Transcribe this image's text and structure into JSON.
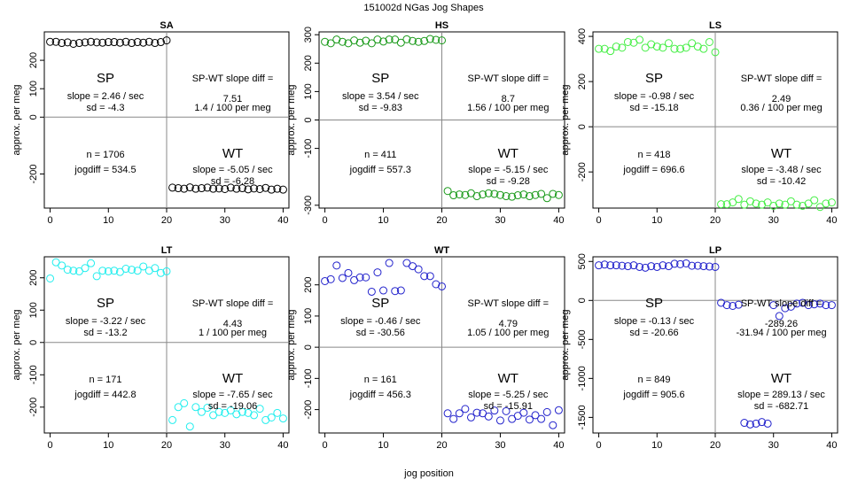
{
  "figure": {
    "title": "151002d   NGas Jog Shapes",
    "xlabel": "jog position",
    "ylabel": "approx. per meg"
  },
  "chart_data": [
    {
      "type": "scatter",
      "title": "SA",
      "color": "#000000",
      "xlim": [
        -1,
        41
      ],
      "ylim": [
        -320,
        300
      ],
      "xticks": [
        0,
        10,
        20,
        30,
        40
      ],
      "yticks": [
        -200,
        0,
        100,
        200
      ],
      "x": [
        0,
        1,
        2,
        3,
        4,
        5,
        6,
        7,
        8,
        9,
        10,
        11,
        12,
        13,
        14,
        15,
        16,
        17,
        18,
        19,
        20,
        21,
        22,
        23,
        24,
        25,
        26,
        27,
        28,
        29,
        30,
        31,
        32,
        33,
        34,
        35,
        36,
        37,
        38,
        39,
        40
      ],
      "y": [
        265,
        265,
        261,
        263,
        258,
        261,
        263,
        265,
        263,
        262,
        264,
        264,
        262,
        265,
        261,
        264,
        262,
        265,
        261,
        264,
        270,
        -248,
        -250,
        -252,
        -247,
        -252,
        -250,
        -248,
        -252,
        -251,
        -253,
        -248,
        -252,
        -250,
        -254,
        -251,
        -253,
        -249,
        -255,
        -252,
        -255
      ],
      "annotations": {
        "sp_label": "SP",
        "sp_slope": "slope = 2.46 / sec",
        "sp_sd": "sd = -4.3",
        "diff_title": "SP-WT slope diff =",
        "diff_value": "7.51",
        "diff_permeg": "1.4 / 100 per meg",
        "n": "n = 1706",
        "jogdiff": "jogdiff = 534.5",
        "wt_label": "WT",
        "wt_slope": "slope = -5.05 / sec",
        "wt_sd": "sd = -6.28"
      }
    },
    {
      "type": "scatter",
      "title": "HS",
      "color": "#1a9a1a",
      "xlim": [
        -1,
        41
      ],
      "ylim": [
        -310,
        310
      ],
      "xticks": [
        0,
        10,
        20,
        30,
        40
      ],
      "yticks": [
        -300,
        -100,
        0,
        100,
        200,
        300
      ],
      "x": [
        0,
        1,
        2,
        3,
        4,
        5,
        6,
        7,
        8,
        9,
        10,
        11,
        12,
        13,
        14,
        15,
        16,
        17,
        18,
        19,
        20,
        21,
        22,
        23,
        24,
        25,
        26,
        27,
        28,
        29,
        30,
        31,
        32,
        33,
        34,
        35,
        36,
        37,
        38,
        39,
        40
      ],
      "y": [
        275,
        270,
        283,
        275,
        270,
        280,
        272,
        279,
        270,
        283,
        276,
        283,
        283,
        272,
        284,
        278,
        275,
        278,
        285,
        282,
        280,
        -250,
        -265,
        -262,
        -264,
        -258,
        -268,
        -262,
        -258,
        -260,
        -264,
        -268,
        -270,
        -265,
        -262,
        -268,
        -264,
        -260,
        -275,
        -260,
        -264
      ],
      "annotations": {
        "sp_label": "SP",
        "sp_slope": "slope = 3.54 / sec",
        "sp_sd": "sd = -9.83",
        "diff_title": "SP-WT slope diff =",
        "diff_value": "8.7",
        "diff_permeg": "1.56 / 100 per meg",
        "n": "n = 411",
        "jogdiff": "jogdiff = 557.3",
        "wt_label": "WT",
        "wt_slope": "slope = -5.15 / sec",
        "wt_sd": "sd = -9.28"
      }
    },
    {
      "type": "scatter",
      "title": "LS",
      "color": "#44ee44",
      "xlim": [
        -1,
        41
      ],
      "ylim": [
        -360,
        420
      ],
      "xticks": [
        0,
        10,
        20,
        30,
        40
      ],
      "yticks": [
        -200,
        0,
        200,
        400
      ],
      "x": [
        0,
        1,
        2,
        3,
        4,
        5,
        6,
        7,
        8,
        9,
        10,
        11,
        12,
        13,
        14,
        15,
        16,
        17,
        18,
        19,
        20,
        21,
        22,
        23,
        24,
        25,
        26,
        27,
        28,
        29,
        30,
        31,
        32,
        33,
        34,
        35,
        36,
        37,
        38,
        39,
        40
      ],
      "y": [
        345,
        345,
        335,
        355,
        350,
        375,
        372,
        385,
        350,
        365,
        355,
        350,
        370,
        345,
        345,
        350,
        370,
        355,
        345,
        375,
        330,
        -343,
        -343,
        -335,
        -320,
        -345,
        -330,
        -340,
        -345,
        -335,
        -350,
        -340,
        -345,
        -330,
        -345,
        -350,
        -340,
        -325,
        -355,
        -340,
        -335
      ],
      "annotations": {
        "sp_label": "SP",
        "sp_slope": "slope = -0.98 / sec",
        "sp_sd": "sd = -15.18",
        "diff_title": "SP-WT slope diff =",
        "diff_value": "2.49",
        "diff_permeg": "0.36 / 100 per meg",
        "n": "n = 418",
        "jogdiff": "jogdiff = 696.6",
        "wt_label": "WT",
        "wt_slope": "slope = -3.48 / sec",
        "wt_sd": "sd = -10.42"
      }
    },
    {
      "type": "scatter",
      "title": "LT",
      "color": "#22eeee",
      "xlim": [
        -1,
        41
      ],
      "ylim": [
        -280,
        265
      ],
      "xticks": [
        0,
        10,
        20,
        30,
        40
      ],
      "yticks": [
        -200,
        -100,
        0,
        100,
        200
      ],
      "x": [
        0,
        1,
        2,
        3,
        4,
        5,
        6,
        7,
        8,
        9,
        10,
        11,
        12,
        13,
        14,
        15,
        16,
        17,
        18,
        19,
        20,
        21,
        22,
        23,
        24,
        25,
        26,
        27,
        28,
        29,
        30,
        31,
        32,
        33,
        34,
        35,
        36,
        37,
        38,
        39,
        40
      ],
      "y": [
        198,
        248,
        238,
        225,
        222,
        220,
        230,
        245,
        205,
        222,
        220,
        222,
        218,
        228,
        225,
        222,
        235,
        222,
        230,
        215,
        220,
        -240,
        -200,
        -188,
        -260,
        -200,
        -215,
        -202,
        -225,
        -215,
        -218,
        -210,
        -222,
        -215,
        -218,
        -225,
        -205,
        -240,
        -232,
        -218,
        -235
      ],
      "annotations": {
        "sp_label": "SP",
        "sp_slope": "slope = -3.22 / sec",
        "sp_sd": "sd = -13.2",
        "diff_title": "SP-WT slope diff =",
        "diff_value": "4.43",
        "diff_permeg": "1 / 100 per meg",
        "n": "n = 171",
        "jogdiff": "jogdiff = 442.8",
        "wt_label": "WT",
        "wt_slope": "slope = -7.65 / sec",
        "wt_sd": "sd = -19.06"
      }
    },
    {
      "type": "scatter",
      "title": "WT",
      "color": "#2222cc",
      "xlim": [
        -1,
        41
      ],
      "ylim": [
        -275,
        290
      ],
      "xticks": [
        0,
        10,
        20,
        30,
        40
      ],
      "yticks": [
        -200,
        -100,
        0,
        100,
        200
      ],
      "x": [
        0,
        1,
        2,
        3,
        4,
        5,
        6,
        7,
        8,
        9,
        10,
        11,
        12,
        13,
        14,
        15,
        16,
        17,
        18,
        19,
        20,
        21,
        22,
        23,
        24,
        25,
        26,
        27,
        28,
        29,
        30,
        31,
        32,
        33,
        34,
        35,
        36,
        37,
        38,
        39,
        40
      ],
      "y": [
        212,
        218,
        262,
        222,
        238,
        215,
        224,
        224,
        178,
        240,
        182,
        270,
        180,
        182,
        270,
        260,
        250,
        228,
        228,
        202,
        195,
        -212,
        -230,
        -212,
        -198,
        -225,
        -210,
        -212,
        -222,
        -203,
        -235,
        -205,
        -230,
        -220,
        -210,
        -232,
        -218,
        -230,
        -208,
        -250,
        -202
      ],
      "annotations": {
        "sp_label": "SP",
        "sp_slope": "slope = -0.46 / sec",
        "sp_sd": "sd = -30.56",
        "diff_title": "SP-WT slope diff =",
        "diff_value": "4.79",
        "diff_permeg": "1.05 / 100 per meg",
        "n": "n = 161",
        "jogdiff": "jogdiff = 456.3",
        "wt_label": "WT",
        "wt_slope": "slope = -5.25 / sec",
        "wt_sd": "sd = -15.91"
      }
    },
    {
      "type": "scatter",
      "title": "LP",
      "color": "#2222cc",
      "xlim": [
        -1,
        41
      ],
      "ylim": [
        -1700,
        560
      ],
      "xticks": [
        0,
        10,
        20,
        30,
        40
      ],
      "yticks": [
        -1500,
        -1000,
        -500,
        0,
        500
      ],
      "x": [
        0,
        1,
        2,
        3,
        4,
        5,
        6,
        7,
        8,
        9,
        10,
        11,
        12,
        13,
        14,
        15,
        16,
        17,
        18,
        19,
        20,
        21,
        22,
        23,
        24,
        25,
        26,
        27,
        28,
        29,
        30,
        31,
        32,
        33,
        34,
        35,
        36,
        37,
        38,
        39,
        40
      ],
      "y": [
        450,
        460,
        450,
        450,
        445,
        440,
        450,
        430,
        420,
        440,
        430,
        450,
        440,
        470,
        465,
        475,
        445,
        445,
        440,
        435,
        430,
        -30,
        -60,
        -70,
        -55,
        -1570,
        -1590,
        -1580,
        -1560,
        -1580,
        -60,
        -200,
        -100,
        -80,
        -40,
        -30,
        -60,
        -50,
        -40,
        -60,
        -60
      ],
      "annotations": {
        "sp_label": "SP",
        "sp_slope": "slope = -0.13 / sec",
        "sp_sd": "sd = -20.66",
        "diff_title": "SP-WT slope diff =",
        "diff_value": "-289.26",
        "diff_permeg": "-31.94 / 100 per meg",
        "n": "n = 849",
        "jogdiff": "jogdiff = 905.6",
        "wt_label": "WT",
        "wt_slope": "slope = 289.13 / sec",
        "wt_sd": "sd = -682.71"
      }
    }
  ]
}
